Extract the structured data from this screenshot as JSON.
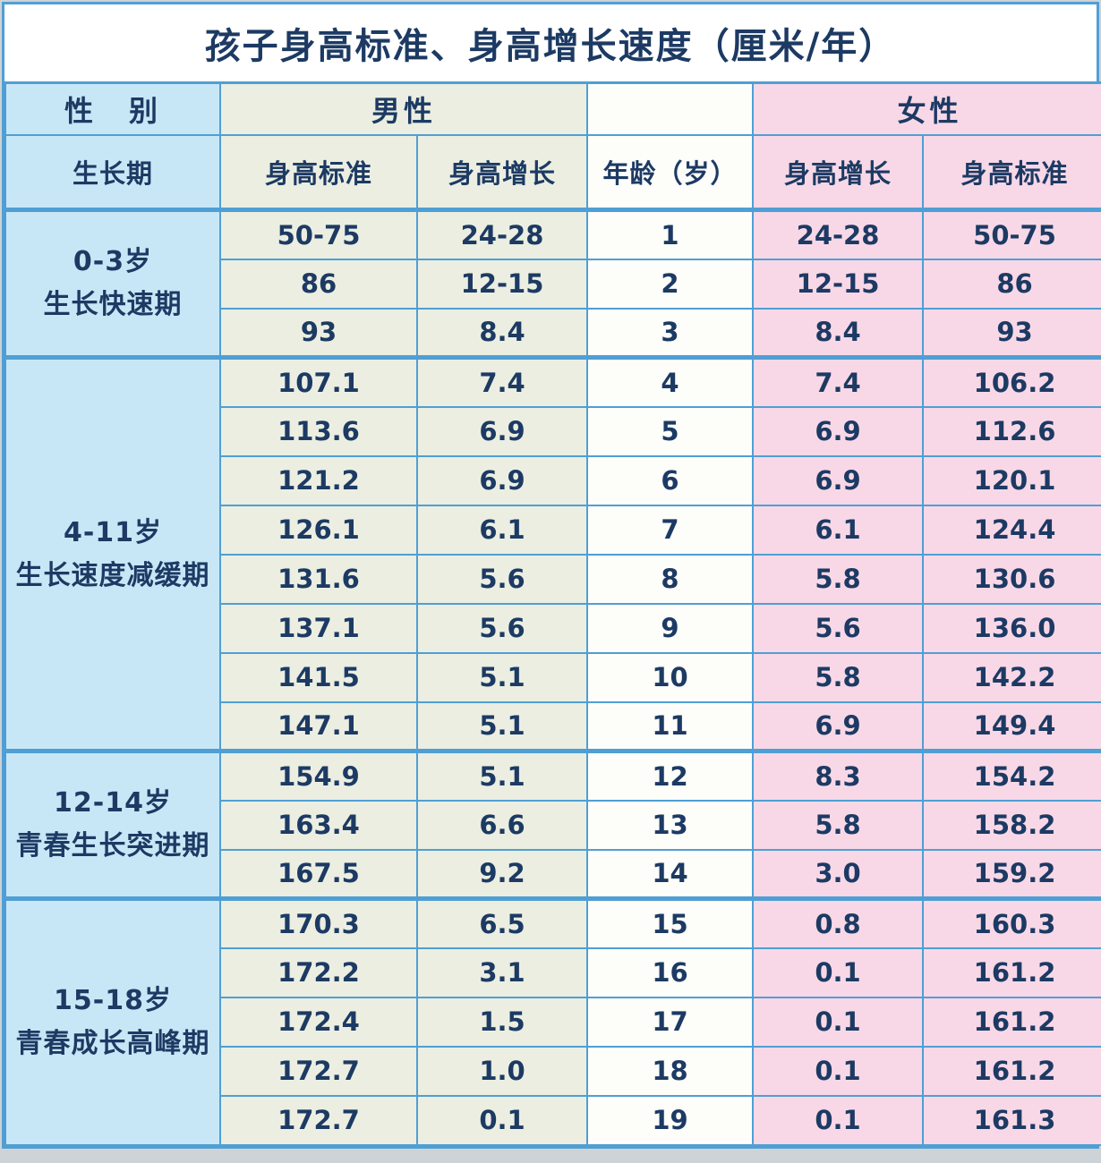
{
  "title": "孩子身高标准、身高增长速度（厘米/年）",
  "header": {
    "gender_label": "性　别",
    "male_label": "男性",
    "female_label": "女性",
    "period_label": "生长期",
    "male_std_label": "身高标准",
    "male_growth_label": "身高增长",
    "age_label": "年龄（岁）",
    "female_growth_label": "身高增长",
    "female_std_label": "身高标准",
    "age_spacer": ""
  },
  "chart_data": {
    "type": "table",
    "title": "孩子身高标准、身高增长速度（厘米/年）",
    "columns": [
      "生长期",
      "男性-身高标准",
      "男性-身高增长",
      "年龄（岁）",
      "女性-身高增长",
      "女性-身高标准"
    ],
    "groups": [
      {
        "period": "0-3岁",
        "period_desc": "生长快速期",
        "rows": [
          {
            "male_std": "50-75",
            "male_growth": "24-28",
            "age": "1",
            "female_growth": "24-28",
            "female_std": "50-75"
          },
          {
            "male_std": "86",
            "male_growth": "12-15",
            "age": "2",
            "female_growth": "12-15",
            "female_std": "86"
          },
          {
            "male_std": "93",
            "male_growth": "8.4",
            "age": "3",
            "female_growth": "8.4",
            "female_std": "93"
          }
        ]
      },
      {
        "period": "4-11岁",
        "period_desc": "生长速度减缓期",
        "rows": [
          {
            "male_std": "107.1",
            "male_growth": "7.4",
            "age": "4",
            "female_growth": "7.4",
            "female_std": "106.2"
          },
          {
            "male_std": "113.6",
            "male_growth": "6.9",
            "age": "5",
            "female_growth": "6.9",
            "female_std": "112.6"
          },
          {
            "male_std": "121.2",
            "male_growth": "6.9",
            "age": "6",
            "female_growth": "6.9",
            "female_std": "120.1"
          },
          {
            "male_std": "126.1",
            "male_growth": "6.1",
            "age": "7",
            "female_growth": "6.1",
            "female_std": "124.4"
          },
          {
            "male_std": "131.6",
            "male_growth": "5.6",
            "age": "8",
            "female_growth": "5.8",
            "female_std": "130.6"
          },
          {
            "male_std": "137.1",
            "male_growth": "5.6",
            "age": "9",
            "female_growth": "5.6",
            "female_std": "136.0"
          },
          {
            "male_std": "141.5",
            "male_growth": "5.1",
            "age": "10",
            "female_growth": "5.8",
            "female_std": "142.2"
          },
          {
            "male_std": "147.1",
            "male_growth": "5.1",
            "age": "11",
            "female_growth": "6.9",
            "female_std": "149.4"
          }
        ]
      },
      {
        "period": "12-14岁",
        "period_desc": "青春生长突进期",
        "rows": [
          {
            "male_std": "154.9",
            "male_growth": "5.1",
            "age": "12",
            "female_growth": "8.3",
            "female_std": "154.2"
          },
          {
            "male_std": "163.4",
            "male_growth": "6.6",
            "age": "13",
            "female_growth": "5.8",
            "female_std": "158.2"
          },
          {
            "male_std": "167.5",
            "male_growth": "9.2",
            "age": "14",
            "female_growth": "3.0",
            "female_std": "159.2"
          }
        ]
      },
      {
        "period": "15-18岁",
        "period_desc": "青春成长高峰期",
        "rows": [
          {
            "male_std": "170.3",
            "male_growth": "6.5",
            "age": "15",
            "female_growth": "0.8",
            "female_std": "160.3"
          },
          {
            "male_std": "172.2",
            "male_growth": "3.1",
            "age": "16",
            "female_growth": "0.1",
            "female_std": "161.2"
          },
          {
            "male_std": "172.4",
            "male_growth": "1.5",
            "age": "17",
            "female_growth": "0.1",
            "female_std": "161.2"
          },
          {
            "male_std": "172.7",
            "male_growth": "1.0",
            "age": "18",
            "female_growth": "0.1",
            "female_std": "161.2"
          },
          {
            "male_std": "172.7",
            "male_growth": "0.1",
            "age": "19",
            "female_growth": "0.1",
            "female_std": "161.3"
          }
        ]
      }
    ]
  },
  "colors": {
    "border": "#4f9fd4",
    "text": "#1c3a63",
    "period_bg": "#c8e7f6",
    "male_bg": "#ebeee1",
    "age_bg": "#fdfdfa",
    "female_bg": "#f8d8e7",
    "title_bg": "#ffffff",
    "page_bg": "#cdd3d7"
  }
}
